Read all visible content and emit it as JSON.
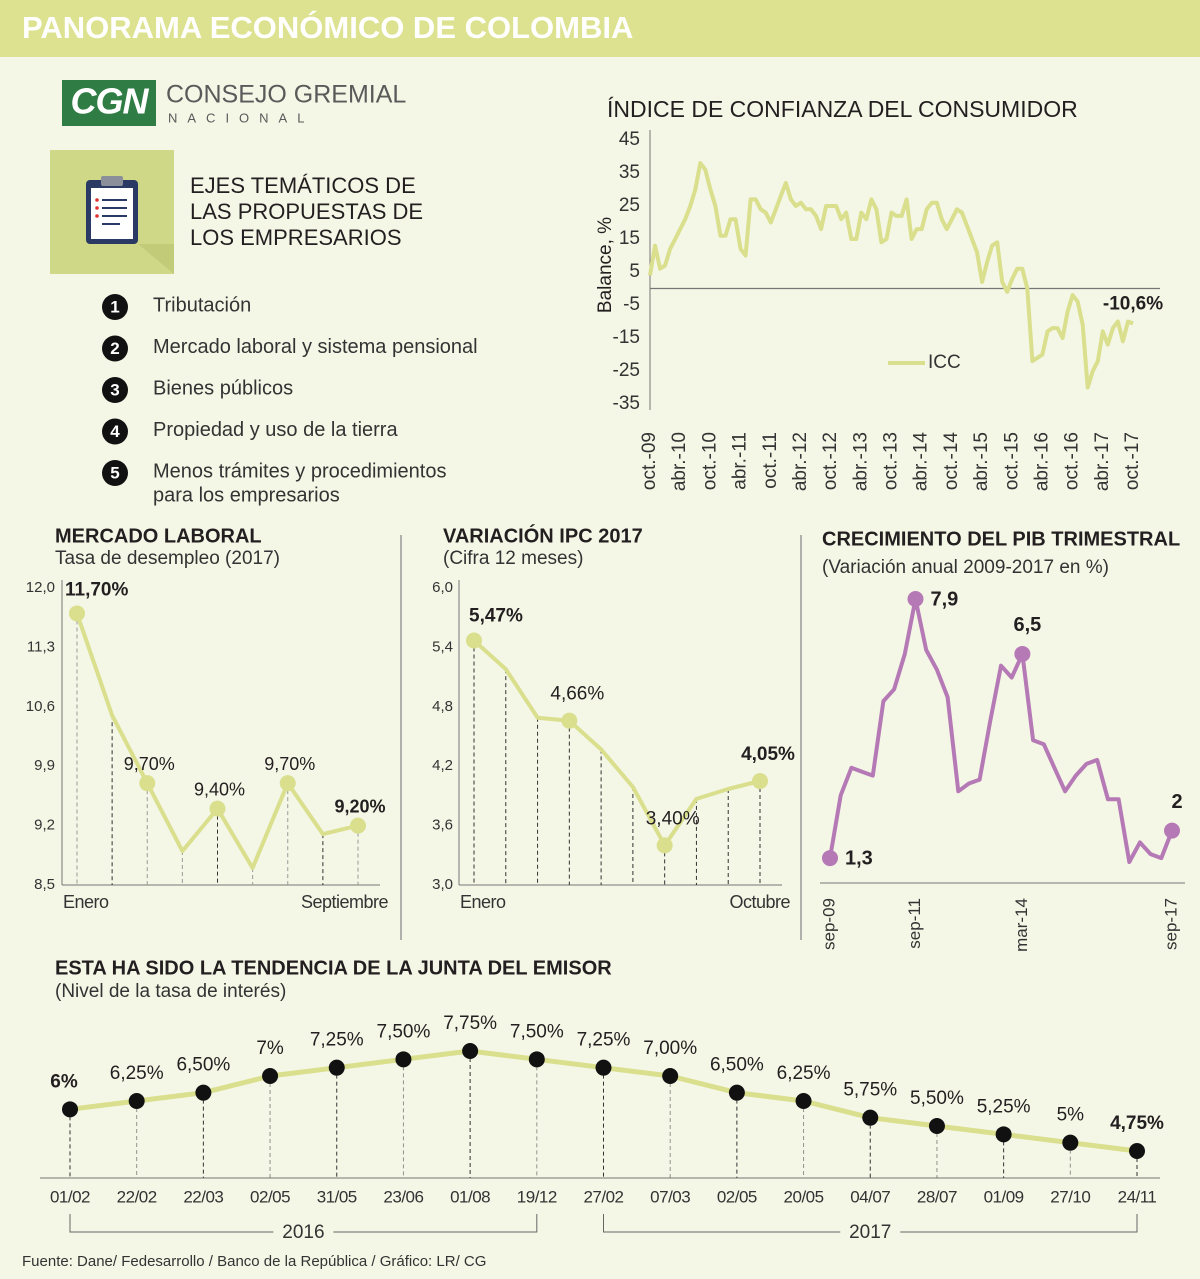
{
  "header": {
    "title": "PANORAMA ECONÓMICO DE COLOMBIA"
  },
  "logo": {
    "abbr": "CGN",
    "name": "CONSEJO GREMIAL",
    "sub": "NACIONAL"
  },
  "topics": {
    "title_lines": [
      "EJES TEMÁTICOS DE",
      "LAS PROPUESTAS DE",
      "LOS EMPRESARIOS"
    ],
    "items": [
      {
        "number": 1,
        "lines": [
          "Tributación"
        ]
      },
      {
        "number": 2,
        "lines": [
          "Mercado laboral y sistema pensional"
        ]
      },
      {
        "number": 3,
        "lines": [
          "Bienes públicos"
        ]
      },
      {
        "number": 4,
        "lines": [
          "Propiedad y uso de la tierra"
        ]
      },
      {
        "number": 5,
        "lines": [
          "Menos trámites y procedimientos",
          "para los empresarios"
        ]
      }
    ]
  },
  "chart_data": [
    {
      "type": "line",
      "title": "ÍNDICE DE CONFIANZA DEL CONSUMIDOR",
      "y_label": "Balance, %",
      "ylim": [
        -35,
        45
      ],
      "yticks": [
        45,
        35,
        25,
        15,
        5,
        -5,
        -15,
        -25,
        -35
      ],
      "categories": [
        "oct.-09",
        null,
        null,
        null,
        null,
        null,
        "abr.-10",
        null,
        null,
        null,
        null,
        null,
        "oct.-10",
        null,
        null,
        null,
        null,
        null,
        "abr.-11",
        null,
        null,
        null,
        null,
        null,
        "oct.-11",
        null,
        null,
        null,
        null,
        null,
        "abr.-12",
        null,
        null,
        null,
        null,
        null,
        "oct.-12",
        null,
        null,
        null,
        null,
        null,
        "abr.-13",
        null,
        null,
        null,
        null,
        null,
        "oct.-13",
        null,
        null,
        null,
        null,
        null,
        "abr.-14",
        null,
        null,
        null,
        null,
        null,
        "oct.-14",
        null,
        null,
        null,
        null,
        null,
        "abr.-15",
        null,
        null,
        null,
        null,
        null,
        "oct.-15",
        null,
        null,
        null,
        null,
        null,
        "abr.-16",
        null,
        null,
        null,
        null,
        null,
        "oct.-16",
        null,
        null,
        null,
        null,
        null,
        "abr.-17",
        null,
        null,
        null,
        null,
        null,
        "oct.-17"
      ],
      "series": [
        {
          "name": "ICC",
          "color": "#d9df8c",
          "values": [
            4,
            13,
            6,
            7,
            12,
            15,
            18,
            21,
            25,
            30,
            38,
            36,
            30,
            25,
            16,
            16,
            21,
            21,
            12,
            10,
            27,
            27,
            24,
            23,
            20,
            24,
            28,
            32,
            27,
            25,
            26,
            24,
            24,
            22,
            18,
            25,
            25,
            25,
            21,
            23,
            15,
            15,
            23,
            21,
            27,
            24,
            14,
            15,
            23,
            22,
            22,
            27,
            15,
            18,
            18,
            24,
            26,
            26,
            21,
            18,
            21,
            24,
            23,
            19,
            15,
            11,
            2,
            8,
            13,
            14,
            2,
            -1,
            3,
            6,
            6,
            0,
            -22,
            -21,
            -20,
            -13,
            -12,
            -12,
            -15,
            -7,
            -2,
            -4,
            -11,
            -30,
            -25,
            -22,
            -13,
            -17,
            -12,
            -10,
            -16,
            -10,
            -10.6
          ],
          "value_labels": [
            null,
            null,
            null,
            null,
            null,
            null,
            null,
            null,
            null,
            null,
            null,
            null,
            null,
            null,
            null,
            null,
            null,
            null,
            null,
            null,
            null,
            null,
            null,
            null,
            null,
            null,
            null,
            null,
            null,
            null,
            null,
            null,
            null,
            null,
            null,
            null,
            null,
            null,
            null,
            null,
            null,
            null,
            null,
            null,
            null,
            null,
            null,
            null,
            null,
            null,
            null,
            null,
            null,
            null,
            null,
            null,
            null,
            null,
            null,
            null,
            null,
            null,
            null,
            null,
            null,
            null,
            null,
            null,
            null,
            null,
            null,
            null,
            null,
            null,
            null,
            null,
            null,
            null,
            null,
            null,
            null,
            null,
            null,
            null,
            null,
            null,
            null,
            null,
            null,
            null,
            null,
            null,
            null,
            null,
            null,
            null,
            "-10,6%"
          ]
        }
      ]
    },
    {
      "type": "line",
      "title": "MERCADO LABORAL",
      "subtitle": "Tasa de desempleo (2017)",
      "ylim": [
        8.5,
        12.0
      ],
      "yticks": [
        {
          "value": 12.0,
          "label": "12,0"
        },
        {
          "value": 11.3,
          "label": "11,3"
        },
        {
          "value": 10.6,
          "label": "10,6"
        },
        {
          "value": 9.9,
          "label": "9,9"
        },
        {
          "value": 9.2,
          "label": "9,2"
        },
        {
          "value": 8.5,
          "label": "8,5"
        }
      ],
      "categories": [
        "Enero",
        null,
        null,
        null,
        null,
        null,
        null,
        null,
        "Septiembre"
      ],
      "series": [
        {
          "color": "#d9df8c",
          "values": [
            11.7,
            10.5,
            9.7,
            8.9,
            9.4,
            8.7,
            9.7,
            9.1,
            9.2
          ],
          "value_labels": [
            "11,70%",
            null,
            "9,70%",
            null,
            "9,40%",
            null,
            "9,70%",
            null,
            "9,20%"
          ]
        }
      ]
    },
    {
      "type": "line",
      "title": "VARIACIÓN IPC 2017",
      "subtitle": "(Cifra 12 meses)",
      "ylim": [
        3.0,
        6.0
      ],
      "yticks": [
        {
          "value": 6.0,
          "label": "6,0"
        },
        {
          "value": 5.4,
          "label": "5,4"
        },
        {
          "value": 4.8,
          "label": "4,8"
        },
        {
          "value": 4.2,
          "label": "4,2"
        },
        {
          "value": 3.6,
          "label": "3,6"
        },
        {
          "value": 3.0,
          "label": "3,0"
        }
      ],
      "categories": [
        "Enero",
        null,
        null,
        null,
        null,
        null,
        null,
        null,
        null,
        "Octubre"
      ],
      "series": [
        {
          "color": "#d9df8c",
          "values": [
            5.47,
            5.18,
            4.69,
            4.66,
            4.37,
            3.99,
            3.4,
            3.87,
            3.97,
            4.05
          ],
          "value_labels": [
            "5,47%",
            null,
            null,
            "4,66%",
            null,
            null,
            "3,40%",
            null,
            null,
            "4,05%"
          ]
        }
      ]
    },
    {
      "type": "line",
      "title": "CRECIMIENTO DEL PIB TRIMESTRAL",
      "subtitle": "(Variación anual 2009-2017 en %)",
      "categories": [
        "sep-09",
        null,
        null,
        null,
        null,
        null,
        null,
        null,
        "sep-11",
        null,
        null,
        null,
        null,
        null,
        null,
        null,
        null,
        null,
        "mar-14",
        null,
        null,
        null,
        null,
        null,
        null,
        null,
        null,
        null,
        null,
        null,
        null,
        null,
        "sep-17"
      ],
      "series": [
        {
          "color": "#b57ab5",
          "values": [
            1.3,
            2.9,
            3.6,
            3.5,
            3.4,
            5.3,
            5.6,
            6.5,
            7.9,
            6.6,
            6.1,
            5.4,
            3.0,
            3.2,
            3.3,
            4.8,
            6.2,
            5.9,
            6.5,
            4.3,
            4.2,
            3.6,
            3.0,
            3.4,
            3.7,
            3.8,
            2.8,
            2.8,
            1.2,
            1.7,
            1.4,
            1.3,
            2.0
          ],
          "value_labels": [
            "1,3",
            null,
            null,
            null,
            null,
            null,
            null,
            null,
            "7,9",
            null,
            null,
            null,
            null,
            null,
            null,
            null,
            null,
            null,
            "6,5",
            null,
            null,
            null,
            null,
            null,
            null,
            null,
            null,
            null,
            null,
            null,
            null,
            null,
            "2"
          ]
        }
      ]
    },
    {
      "type": "line",
      "title": "ESTA HA SIDO LA TENDENCIA DE LA JUNTA DEL EMISOR",
      "subtitle": "(Nivel de la tasa de interés)",
      "categories": [
        "01/02",
        "22/02",
        "22/03",
        "02/05",
        "31/05",
        "23/06",
        "01/08",
        "19/12",
        "27/02",
        "07/03",
        "02/05",
        "20/05",
        "04/07",
        "28/07",
        "01/09",
        "27/10",
        "24/11"
      ],
      "groups": [
        {
          "label": "2016",
          "size": 8
        },
        {
          "label": "2017",
          "size": 9
        }
      ],
      "series": [
        {
          "color": "#d9df8c",
          "values": [
            6,
            6.25,
            6.5,
            7,
            7.25,
            7.5,
            7.75,
            7.5,
            7.25,
            7.0,
            6.5,
            6.25,
            5.75,
            5.5,
            5.25,
            5,
            4.75
          ],
          "value_labels": [
            "6%",
            "6,25%",
            "6,50%",
            "7%",
            "7,25%",
            "7,50%",
            "7,75%",
            "7,50%",
            "7,25%",
            "7,00%",
            "6,50%",
            "6,25%",
            "5,75%",
            "5,50%",
            "5,25%",
            "5%",
            "4,75%"
          ]
        }
      ]
    }
  ],
  "source": "Fuente: Dane/ Fedesarrollo / Banco de la República / Gráfico: LR/ CG"
}
